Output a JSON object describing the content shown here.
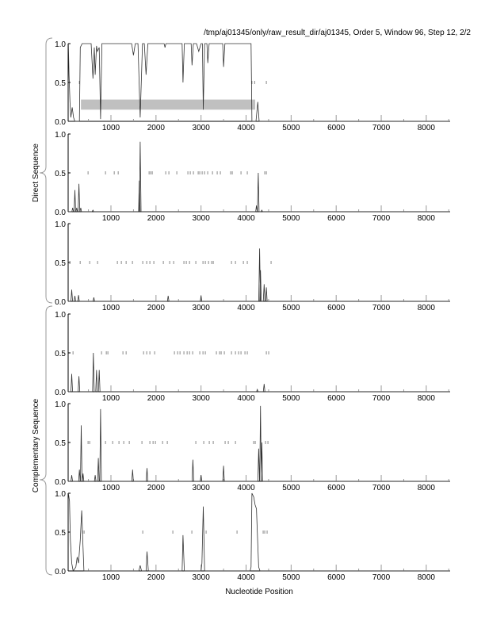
{
  "title": "/tmp/aj01345/only/raw_result_dir/aj01345, Order 5, Window 96, Step 12, 2/2",
  "chart_data": {
    "type": "line",
    "xlabel": "Nucleotide Position",
    "group_labels": [
      "Direct Sequence",
      "Complementary Sequence"
    ],
    "xlim": [
      50,
      8530
    ],
    "ylim": [
      0,
      1
    ],
    "xticks": [
      1000,
      2000,
      3000,
      4000,
      5000,
      6000,
      7000,
      8000
    ],
    "yticks": [
      "0.0",
      "0.5",
      "1.0"
    ],
    "colors": {
      "line": "#333333",
      "highlight_bar": "#c0c0c0",
      "orf_tick": "#888888"
    },
    "panels": [
      {
        "points": [
          [
            55,
            1.0
          ],
          [
            70,
            0.6
          ],
          [
            90,
            0.25
          ],
          [
            110,
            0.05
          ],
          [
            140,
            0.18
          ],
          [
            170,
            0.05
          ],
          [
            200,
            0
          ],
          [
            300,
            0
          ],
          [
            320,
            0.95
          ],
          [
            360,
            1.0
          ],
          [
            560,
            1.0
          ],
          [
            600,
            0.55
          ],
          [
            630,
            0.95
          ],
          [
            650,
            0.6
          ],
          [
            680,
            0.97
          ],
          [
            700,
            0.9
          ],
          [
            740,
            0.95
          ],
          [
            770,
            0.03
          ],
          [
            800,
            1.0
          ],
          [
            1460,
            1.0
          ],
          [
            1500,
            0.85
          ],
          [
            1540,
            1.0
          ],
          [
            1600,
            1.0
          ],
          [
            1650,
            0.05
          ],
          [
            1700,
            1.0
          ],
          [
            1740,
            1.0
          ],
          [
            1780,
            0.6
          ],
          [
            1820,
            1.0
          ],
          [
            2180,
            1.0
          ],
          [
            2200,
            0.95
          ],
          [
            2220,
            1.0
          ],
          [
            2580,
            1.0
          ],
          [
            2600,
            0.5
          ],
          [
            2630,
            1.0
          ],
          [
            2780,
            1.0
          ],
          [
            2800,
            0.72
          ],
          [
            2830,
            1.0
          ],
          [
            2900,
            1.0
          ],
          [
            2950,
            0.9
          ],
          [
            3000,
            1.0
          ],
          [
            3030,
            1.0
          ],
          [
            3050,
            0.15
          ],
          [
            3080,
            1.0
          ],
          [
            3130,
            1.0
          ],
          [
            3150,
            0.75
          ],
          [
            3180,
            1.0
          ],
          [
            3480,
            1.0
          ],
          [
            3500,
            0.7
          ],
          [
            3530,
            1.0
          ],
          [
            4110,
            1.0
          ],
          [
            4130,
            0
          ],
          [
            4220,
            0
          ],
          [
            4260,
            0.25
          ],
          [
            4290,
            0
          ],
          [
            8530,
            0
          ]
        ],
        "orf_ticks": [
          300,
          4130,
          4190,
          4450
        ],
        "highlight": {
          "x": [
            334,
            4203
          ],
          "y": [
            0.15,
            0.28
          ]
        }
      },
      {
        "peaks": [
          [
            150,
            0.05
          ],
          [
            200,
            0.28
          ],
          [
            240,
            0.05
          ],
          [
            290,
            0.36
          ],
          [
            330,
            0.05
          ],
          [
            600,
            0.02
          ],
          [
            1630,
            0.4
          ],
          [
            1650,
            0.9
          ],
          [
            4230,
            0.08
          ],
          [
            4270,
            0.5
          ],
          [
            4350,
            0.02
          ]
        ],
        "orf_ticks": [
          492,
          879,
          1073,
          1161,
          1847,
          1882,
          1917,
          2216,
          2286,
          2462,
          2708,
          2761,
          2831,
          2937,
          2972,
          3025,
          3078,
          3148,
          3254,
          3359,
          3429,
          3658,
          3693,
          3887,
          4027,
          4414,
          4450
        ]
      },
      {
        "peaks": [
          [
            130,
            0.15
          ],
          [
            200,
            0.07
          ],
          [
            280,
            0.08
          ],
          [
            620,
            0.05
          ],
          [
            2270,
            0.07
          ],
          [
            3000,
            0.07
          ],
          [
            4300,
            0.68
          ],
          [
            4320,
            0.4
          ],
          [
            4400,
            0.22
          ],
          [
            4450,
            0.18
          ]
        ],
        "orf_ticks": [
          88,
          317,
          528,
          703,
          1143,
          1231,
          1337,
          1477,
          1706,
          1794,
          1864,
          1952,
          2163,
          2304,
          2392,
          2620,
          2673,
          2744,
          2884,
          3043,
          3095,
          3166,
          3236,
          3271,
          3676,
          3764,
          3940,
          4027,
          4555
        ]
      },
      {
        "peaks": [
          [
            130,
            0.23
          ],
          [
            290,
            0.2
          ],
          [
            610,
            0.5
          ],
          [
            680,
            0.28
          ],
          [
            740,
            0.28
          ],
          [
            4250,
            0.03
          ],
          [
            4400,
            0.1
          ]
        ],
        "orf_ticks": [
          158,
          791,
          897,
          932,
          1266,
          1337,
          1724,
          1794,
          1864,
          1970,
          2409,
          2480,
          2533,
          2620,
          2691,
          2744,
          2814,
          2972,
          3043,
          3095,
          3341,
          3412,
          3447,
          3517,
          3676,
          3764,
          3834,
          3887,
          3975,
          4027,
          4450,
          4502
        ]
      },
      {
        "peaks": [
          [
            130,
            0.08
          ],
          [
            300,
            0.15
          ],
          [
            340,
            0.72
          ],
          [
            380,
            0.1
          ],
          [
            650,
            0.08
          ],
          [
            720,
            0.3
          ],
          [
            770,
            0.93
          ],
          [
            1480,
            0.15
          ],
          [
            1800,
            0.17
          ],
          [
            2820,
            0.28
          ],
          [
            3000,
            0.08
          ],
          [
            3500,
            0.2
          ],
          [
            4280,
            0.42
          ],
          [
            4320,
            0.97
          ],
          [
            4350,
            0.5
          ]
        ],
        "orf_ticks": [
          492,
          528,
          879,
          1038,
          1178,
          1284,
          1407,
          1688,
          1864,
          1935,
          1987,
          2146,
          2251,
          2884,
          3060,
          3183,
          3271,
          3535,
          3605,
          3764,
          4168,
          4203,
          4432,
          4485
        ]
      },
      {
        "points": [
          [
            55,
            1.0
          ],
          [
            80,
            0.9
          ],
          [
            100,
            0.4
          ],
          [
            130,
            0.1
          ],
          [
            160,
            0
          ],
          [
            220,
            0.05
          ],
          [
            250,
            0.18
          ],
          [
            280,
            0.1
          ],
          [
            320,
            0.4
          ],
          [
            350,
            0.78
          ],
          [
            380,
            0.3
          ],
          [
            400,
            0
          ],
          [
            1620,
            0
          ],
          [
            1650,
            0.07
          ],
          [
            1680,
            0
          ],
          [
            1780,
            0
          ],
          [
            1800,
            0.25
          ],
          [
            1830,
            0
          ],
          [
            2580,
            0
          ],
          [
            2600,
            0.46
          ],
          [
            2630,
            0
          ],
          [
            3000,
            0
          ],
          [
            3020,
            0.1
          ],
          [
            3050,
            0.83
          ],
          [
            3080,
            0
          ],
          [
            4090,
            0
          ],
          [
            4110,
            0.05
          ],
          [
            4130,
            1.0
          ],
          [
            4170,
            0.95
          ],
          [
            4200,
            0.85
          ],
          [
            4230,
            0.8
          ],
          [
            4250,
            0.5
          ],
          [
            4280,
            0.05
          ],
          [
            4310,
            0
          ],
          [
            8530,
            0
          ]
        ],
        "orf_ticks": [
          370,
          404,
          1706,
          2374,
          2796,
          3113,
          3799,
          4379,
          4414,
          4467
        ]
      }
    ]
  }
}
